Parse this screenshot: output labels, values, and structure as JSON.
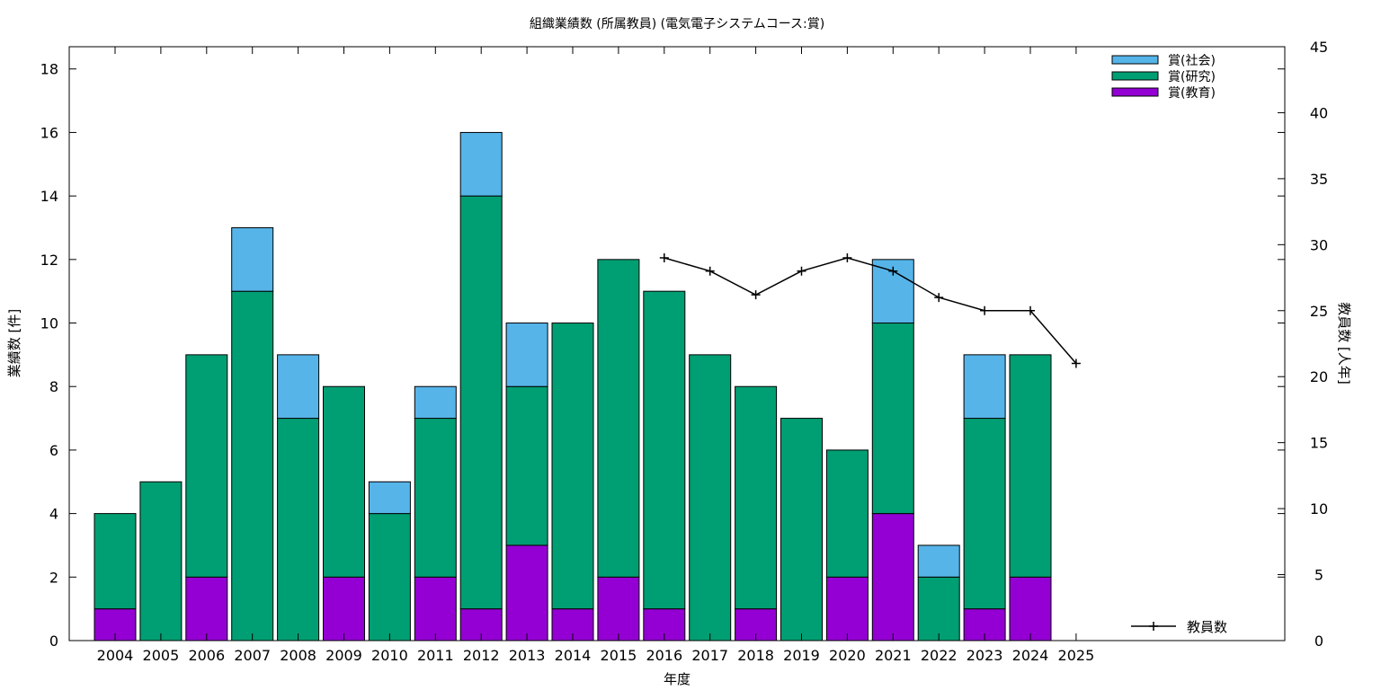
{
  "chart_data": {
    "type": "bar",
    "stacked": true,
    "title": "組織業績数 (所属教員) (電気電子システムコース:賞)",
    "xlabel": "年度",
    "ylabel": "業績数 [件]",
    "y2label": "教員数 [人年]",
    "ylim": [
      0,
      18.7
    ],
    "y2lim": [
      0,
      45
    ],
    "yticks": [
      0,
      2,
      4,
      6,
      8,
      10,
      12,
      14,
      16,
      18
    ],
    "y2ticks": [
      0,
      5,
      10,
      15,
      20,
      25,
      30,
      35,
      40,
      45
    ],
    "grid": false,
    "legend_position": "top-right",
    "categories": [
      "2004",
      "2005",
      "2006",
      "2007",
      "2008",
      "2009",
      "2010",
      "2011",
      "2012",
      "2013",
      "2014",
      "2015",
      "2016",
      "2017",
      "2018",
      "2019",
      "2020",
      "2021",
      "2022",
      "2023",
      "2024",
      "2025"
    ],
    "series": [
      {
        "name": "賞(教育)",
        "color": "#9400d3",
        "values": [
          1,
          0,
          2,
          0,
          0,
          2,
          0,
          2,
          1,
          3,
          1,
          2,
          1,
          0,
          1,
          0,
          2,
          4,
          0,
          1,
          2,
          0
        ]
      },
      {
        "name": "賞(研究)",
        "color": "#009e73",
        "values": [
          3,
          5,
          7,
          11,
          7,
          6,
          4,
          5,
          13,
          5,
          9,
          10,
          10,
          9,
          7,
          7,
          4,
          6,
          2,
          6,
          7,
          0
        ]
      },
      {
        "name": "賞(社会)",
        "color": "#56b4e9",
        "values": [
          0,
          0,
          0,
          2,
          2,
          0,
          1,
          1,
          2,
          2,
          0,
          0,
          0,
          0,
          0,
          0,
          0,
          2,
          1,
          2,
          0,
          0
        ]
      }
    ],
    "line_series": {
      "name": "教員数",
      "axis": "right",
      "color": "#000000",
      "x": [
        "2016",
        "2017",
        "2018",
        "2019",
        "2020",
        "2021",
        "2022",
        "2023",
        "2024",
        "2025"
      ],
      "values": [
        29,
        28,
        26.2,
        28,
        29,
        28,
        26,
        25,
        25,
        21
      ]
    }
  }
}
